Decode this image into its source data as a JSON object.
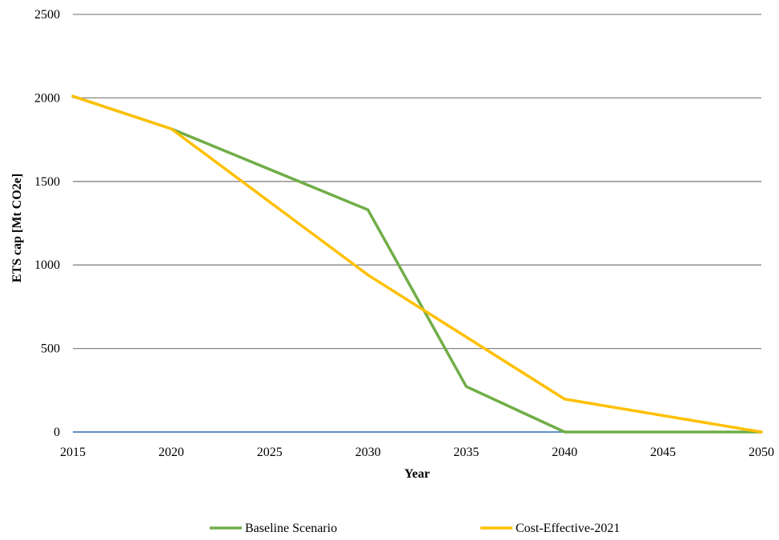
{
  "chart_data": {
    "type": "line",
    "title": "",
    "xlabel": "Year",
    "ylabel": "ETS cap [Mt CO2e]",
    "xlim": [
      2015,
      2050
    ],
    "ylim": [
      0,
      2500
    ],
    "x_ticks": [
      2015,
      2020,
      2025,
      2030,
      2035,
      2040,
      2045,
      2050
    ],
    "y_ticks": [
      0,
      500,
      1000,
      1500,
      2000,
      2500
    ],
    "grid": true,
    "legend_position": "bottom",
    "axis_color": "#4f81bd",
    "series": [
      {
        "name": "Baseline Scenario",
        "color": "#70ad47",
        "points": [
          [
            2015,
            2010
          ],
          [
            2020,
            1815
          ],
          [
            2030,
            1330
          ],
          [
            2035,
            272
          ],
          [
            2040,
            0
          ],
          [
            2050,
            0
          ]
        ]
      },
      {
        "name": "Cost-Effective-2021",
        "color": "#ffc000",
        "points": [
          [
            2015,
            2010
          ],
          [
            2020,
            1815
          ],
          [
            2030,
            940
          ],
          [
            2040,
            197
          ],
          [
            2050,
            0
          ]
        ]
      }
    ]
  }
}
